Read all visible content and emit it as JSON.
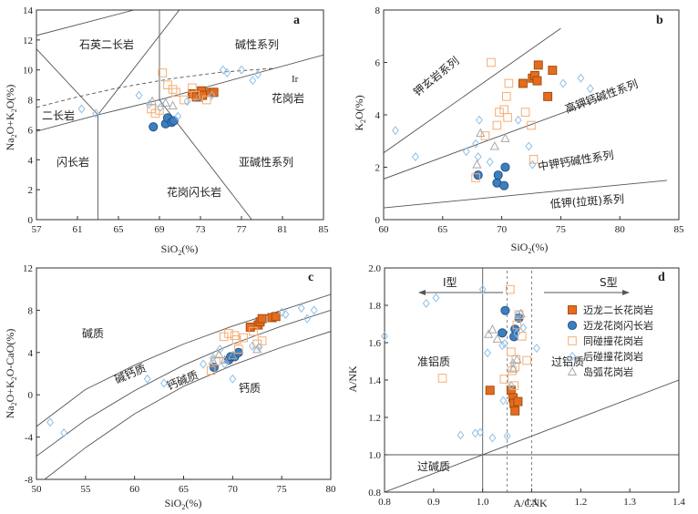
{
  "colors": {
    "orange_fill": "#e46c1e",
    "orange_stroke": "#a14608",
    "blue_fill": "#3c7fc1",
    "blue_stroke": "#1c4f86",
    "orange_open": "#f4ad73",
    "diamond": "#8ebfe6",
    "triangle": "#a8a8a8",
    "axis": "#333333",
    "line": "#555555"
  },
  "chart_data": [
    {
      "id": "a",
      "type": "scatter",
      "panel_label": "a",
      "title": "",
      "xlabel": "SiO2(%)",
      "ylabel": "Na2O+K2O(%)",
      "xlim": [
        57,
        85
      ],
      "ylim": [
        0,
        14
      ],
      "xticks": [
        57,
        61,
        65,
        69,
        73,
        77,
        81,
        85
      ],
      "yticks": [
        0,
        2,
        4,
        6,
        8,
        10,
        12,
        14
      ],
      "field_labels": [
        "石英二长岩",
        "碱性系列",
        "Ir",
        "花岗岩",
        "二长岩",
        "闪长岩",
        "亚碱性系列",
        "花岗闪长岩"
      ],
      "series": [
        {
          "key": "s1",
          "values": [
            [
              72.2,
              8.4
            ],
            [
              72.6,
              8.2
            ],
            [
              73.1,
              8.6
            ],
            [
              73.2,
              8.3
            ],
            [
              74.0,
              8.5
            ],
            [
              74.3,
              8.5
            ]
          ]
        },
        {
          "key": "s2",
          "values": [
            [
              68.4,
              6.2
            ],
            [
              69.6,
              6.4
            ],
            [
              69.8,
              6.8
            ],
            [
              70.2,
              6.5
            ],
            [
              70.4,
              6.6
            ]
          ]
        },
        {
          "key": "s3",
          "values": [
            [
              68.2,
              7.4
            ],
            [
              68.6,
              7.1
            ],
            [
              69.0,
              7.3
            ],
            [
              69.3,
              9.8
            ],
            [
              69.8,
              9.0
            ],
            [
              70.3,
              8.7
            ],
            [
              70.6,
              8.5
            ],
            [
              71.4,
              8.0
            ],
            [
              72.2,
              8.8
            ],
            [
              72.5,
              8.3
            ],
            [
              73.6,
              8.0
            ]
          ]
        },
        {
          "key": "s4",
          "values": [
            [
              61.4,
              7.4
            ],
            [
              62.8,
              7.1
            ],
            [
              67.0,
              8.3
            ],
            [
              68.0,
              7.7
            ],
            [
              69.1,
              7.5
            ],
            [
              70.8,
              6.9
            ],
            [
              71.7,
              7.9
            ],
            [
              74.1,
              8.3
            ],
            [
              75.2,
              10.0
            ],
            [
              75.6,
              9.8
            ],
            [
              77.0,
              10.0
            ],
            [
              78.1,
              9.3
            ],
            [
              78.6,
              9.7
            ]
          ]
        },
        {
          "key": "s5",
          "values": [
            [
              68.3,
              7.9
            ],
            [
              69.6,
              7.8
            ],
            [
              70.3,
              7.6
            ],
            [
              72.8,
              8.1
            ]
          ]
        }
      ]
    },
    {
      "id": "b",
      "type": "scatter",
      "panel_label": "b",
      "title": "",
      "xlabel": "SiO2(%)",
      "ylabel": "K2O(%)",
      "xlim": [
        60,
        85
      ],
      "ylim": [
        0,
        8
      ],
      "xticks": [
        60,
        65,
        70,
        75,
        80,
        85
      ],
      "yticks": [
        0,
        2,
        4,
        6,
        8
      ],
      "field_labels": [
        "钾玄岩系列",
        "高钾钙碱性系列",
        "中钾钙碱性系列",
        "低钾(拉斑)系列"
      ],
      "series": [
        {
          "key": "s1",
          "values": [
            [
              71.8,
              5.2
            ],
            [
              72.6,
              5.4
            ],
            [
              72.8,
              5.5
            ],
            [
              73.0,
              5.3
            ],
            [
              73.1,
              5.9
            ],
            [
              73.9,
              4.7
            ],
            [
              74.3,
              5.7
            ]
          ]
        },
        {
          "key": "s2",
          "values": [
            [
              68.0,
              1.7
            ],
            [
              69.6,
              1.4
            ],
            [
              69.7,
              1.7
            ],
            [
              70.2,
              1.3
            ],
            [
              70.3,
              2.0
            ]
          ]
        },
        {
          "key": "s3",
          "values": [
            [
              67.8,
              1.6
            ],
            [
              68.6,
              3.2
            ],
            [
              69.1,
              6.0
            ],
            [
              69.6,
              3.6
            ],
            [
              69.8,
              4.1
            ],
            [
              70.2,
              4.2
            ],
            [
              70.4,
              4.7
            ],
            [
              70.5,
              3.9
            ],
            [
              70.6,
              5.2
            ],
            [
              72.0,
              4.1
            ],
            [
              72.5,
              3.6
            ],
            [
              72.7,
              2.3
            ]
          ]
        },
        {
          "key": "s4",
          "values": [
            [
              61.0,
              3.4
            ],
            [
              62.7,
              2.4
            ],
            [
              67.0,
              2.6
            ],
            [
              67.8,
              2.9
            ],
            [
              68.0,
              2.4
            ],
            [
              68.1,
              3.8
            ],
            [
              69.0,
              2.2
            ],
            [
              71.4,
              3.8
            ],
            [
              72.3,
              2.8
            ],
            [
              72.6,
              2.1
            ],
            [
              75.2,
              5.2
            ],
            [
              76.7,
              5.4
            ],
            [
              77.5,
              5.0
            ]
          ]
        },
        {
          "key": "s5",
          "values": [
            [
              67.9,
              2.1
            ],
            [
              68.2,
              3.3
            ],
            [
              69.4,
              2.8
            ],
            [
              70.3,
              3.1
            ]
          ]
        }
      ]
    },
    {
      "id": "c",
      "type": "scatter",
      "panel_label": "c",
      "title": "",
      "xlabel": "SiO2(%)",
      "ylabel": "Na2O+K2O-CaO(%)",
      "xlim": [
        50,
        80
      ],
      "ylim": [
        -8,
        12
      ],
      "xticks": [
        50,
        55,
        60,
        65,
        70,
        75,
        80
      ],
      "yticks": [
        -8,
        -4,
        0,
        4,
        8,
        12
      ],
      "field_labels": [
        "碱质",
        "碱钙质",
        "钙碱质",
        "钙质"
      ],
      "series": [
        {
          "key": "s1",
          "values": [
            [
              71.8,
              6.4
            ],
            [
              72.6,
              6.6
            ],
            [
              72.8,
              6.9
            ],
            [
              73.0,
              7.2
            ],
            [
              74.0,
              7.3
            ],
            [
              74.4,
              7.4
            ]
          ]
        },
        {
          "key": "s2",
          "values": [
            [
              68.1,
              2.6
            ],
            [
              69.6,
              3.3
            ],
            [
              69.8,
              3.6
            ],
            [
              70.2,
              3.6
            ],
            [
              70.6,
              4.0
            ]
          ]
        },
        {
          "key": "s3",
          "values": [
            [
              67.8,
              2.3
            ],
            [
              68.3,
              3.2
            ],
            [
              69.1,
              5.5
            ],
            [
              69.6,
              5.8
            ],
            [
              70.2,
              5.6
            ],
            [
              70.4,
              5.2
            ],
            [
              70.6,
              4.3
            ],
            [
              71.1,
              5.4
            ],
            [
              72.1,
              6.0
            ],
            [
              72.5,
              4.8
            ],
            [
              73.0,
              5.1
            ]
          ]
        },
        {
          "key": "s4",
          "values": [
            [
              51.4,
              -2.6
            ],
            [
              52.8,
              -3.6
            ],
            [
              61.3,
              1.5
            ],
            [
              63.0,
              1.1
            ],
            [
              67.0,
              2.9
            ],
            [
              68.0,
              3.5
            ],
            [
              68.7,
              4.3
            ],
            [
              69.2,
              2.9
            ],
            [
              70.0,
              1.5
            ],
            [
              72.0,
              4.6
            ],
            [
              72.7,
              4.5
            ],
            [
              75.0,
              7.8
            ],
            [
              75.4,
              7.6
            ],
            [
              77.0,
              8.2
            ],
            [
              77.6,
              7.2
            ],
            [
              78.3,
              8.0
            ]
          ]
        },
        {
          "key": "s5",
          "values": [
            [
              68.0,
              3.2
            ],
            [
              68.6,
              3.8
            ],
            [
              69.2,
              3.3
            ],
            [
              70.0,
              3.7
            ],
            [
              72.5,
              4.3
            ]
          ]
        }
      ]
    },
    {
      "id": "d",
      "type": "scatter",
      "panel_label": "d",
      "title": "",
      "xlabel": "A/CNK",
      "ylabel": "A/NK",
      "xlim": [
        0.8,
        1.4
      ],
      "ylim": [
        0.8,
        2.0
      ],
      "xticks": [
        0.8,
        0.9,
        1.0,
        1.1,
        1.2,
        1.3,
        1.4
      ],
      "yticks": [
        0.8,
        1.0,
        1.2,
        1.4,
        1.6,
        1.8,
        2.0
      ],
      "field_labels": [
        "I型",
        "S型",
        "准铝质",
        "过铝质",
        "过碱质"
      ],
      "series": [
        {
          "key": "s1",
          "values": [
            [
              1.015,
              1.345
            ],
            [
              1.058,
              1.345
            ],
            [
              1.062,
              1.305
            ],
            [
              1.064,
              1.275
            ],
            [
              1.066,
              1.235
            ],
            [
              1.072,
              1.285
            ]
          ]
        },
        {
          "key": "s2",
          "values": [
            [
              1.04,
              1.652
            ],
            [
              1.046,
              1.772
            ],
            [
              1.064,
              1.632
            ],
            [
              1.066,
              1.672
            ],
            [
              1.074,
              1.732
            ]
          ]
        },
        {
          "key": "s3",
          "values": [
            [
              0.918,
              1.41
            ],
            [
              1.044,
              1.405
            ],
            [
              1.056,
              1.885
            ],
            [
              1.058,
              1.55
            ],
            [
              1.06,
              1.45
            ],
            [
              1.064,
              1.37
            ],
            [
              1.066,
              1.47
            ],
            [
              1.068,
              1.51
            ],
            [
              1.07,
              1.695
            ],
            [
              1.074,
              1.75
            ],
            [
              1.08,
              1.635
            ],
            [
              1.09,
              1.505
            ]
          ]
        },
        {
          "key": "s4",
          "values": [
            [
              0.8,
              1.635
            ],
            [
              0.885,
              1.81
            ],
            [
              0.905,
              1.84
            ],
            [
              0.955,
              1.105
            ],
            [
              0.985,
              1.115
            ],
            [
              0.995,
              1.12
            ],
            [
              1.0,
              1.885
            ],
            [
              1.01,
              1.545
            ],
            [
              1.02,
              1.09
            ],
            [
              1.04,
              1.585
            ],
            [
              1.042,
              1.29
            ],
            [
              1.045,
              1.595
            ],
            [
              1.05,
              1.1
            ],
            [
              1.058,
              1.37
            ],
            [
              1.062,
              1.49
            ],
            [
              1.07,
              1.65
            ],
            [
              1.072,
              1.75
            ],
            [
              1.083,
              1.68
            ],
            [
              1.11,
              1.57
            ]
          ]
        },
        {
          "key": "s5",
          "values": [
            [
              1.012,
              1.645
            ],
            [
              1.02,
              1.67
            ],
            [
              1.03,
              1.62
            ],
            [
              1.062,
              1.46
            ],
            [
              1.07,
              1.51
            ],
            [
              1.078,
              1.755
            ]
          ]
        }
      ],
      "legend": {
        "placement": "right",
        "entries": [
          {
            "key": "s1",
            "label": "迈龙二长花岗岩"
          },
          {
            "key": "s2",
            "label": "迈龙花岗闪长岩"
          },
          {
            "key": "s3",
            "label": "同碰撞花岗岩"
          },
          {
            "key": "s4",
            "label": "后碰撞花岗岩"
          },
          {
            "key": "s5",
            "label": "岛弧花岗岩"
          }
        ]
      }
    }
  ]
}
